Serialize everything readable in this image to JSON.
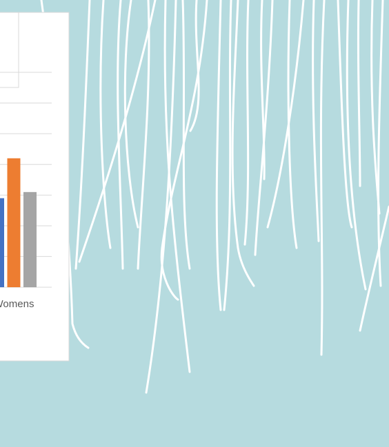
{
  "chart_data": {
    "type": "bar",
    "categories": [
      "Womens"
    ],
    "series": [
      {
        "color": "#4472c4",
        "values": [
          2.9
        ]
      },
      {
        "color": "#ed7d31",
        "values": [
          4.2
        ]
      },
      {
        "color": "#a5a5a5",
        "values": [
          3.1
        ]
      }
    ],
    "ylim": [
      0,
      7
    ],
    "yticks": [
      0,
      1,
      2,
      3,
      4,
      5,
      6,
      7
    ],
    "grid": true
  }
}
